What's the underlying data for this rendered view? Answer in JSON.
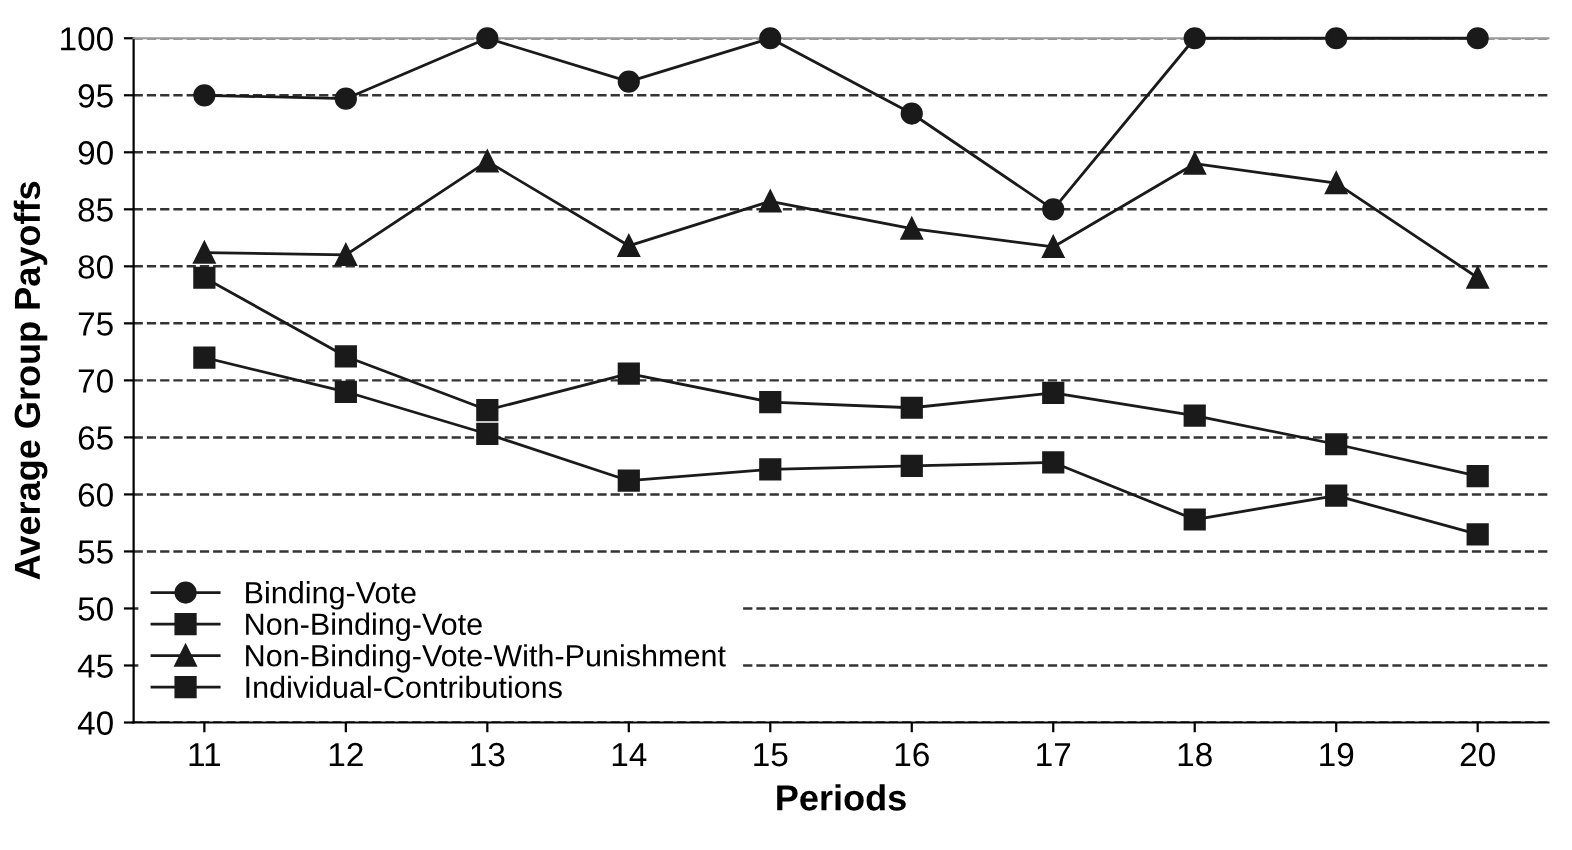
{
  "chart_data": {
    "type": "line",
    "xlabel": "Periods",
    "ylabel": "Average Group Payoffs",
    "categories": [
      "11",
      "12",
      "13",
      "14",
      "15",
      "16",
      "17",
      "18",
      "19",
      "20"
    ],
    "series": [
      {
        "name": "Binding-Vote",
        "color": "#1a1a1a",
        "marker": "circle",
        "values": [
          95,
          94.7,
          100,
          96.2,
          100,
          93.4,
          85,
          100,
          100,
          100
        ]
      },
      {
        "name": "Non-Binding-Vote",
        "color": "#1a1a1a",
        "marker": "square",
        "values": [
          79,
          72.1,
          67.4,
          70.6,
          68.1,
          67.6,
          68.9,
          66.9,
          64.4,
          61.6
        ]
      },
      {
        "name": "Non-Binding-Vote-With-Punishment",
        "color": "#1a1a1a",
        "marker": "triangle",
        "values": [
          81.2,
          81,
          89.2,
          81.8,
          85.7,
          83.3,
          81.7,
          89,
          87.3,
          79
        ]
      },
      {
        "name": "Individual-Contributions",
        "color": "#1a1a1a",
        "marker": "square",
        "values": [
          72,
          69,
          65.3,
          61.2,
          62.2,
          62.5,
          62.8,
          57.8,
          59.9,
          56.5
        ]
      }
    ],
    "ylim": [
      40,
      100
    ],
    "yticks": [
      40,
      45,
      50,
      55,
      60,
      65,
      70,
      75,
      80,
      85,
      90,
      95,
      100
    ],
    "grid": "y",
    "legend": "bottom left",
    "line_style": "solid"
  }
}
